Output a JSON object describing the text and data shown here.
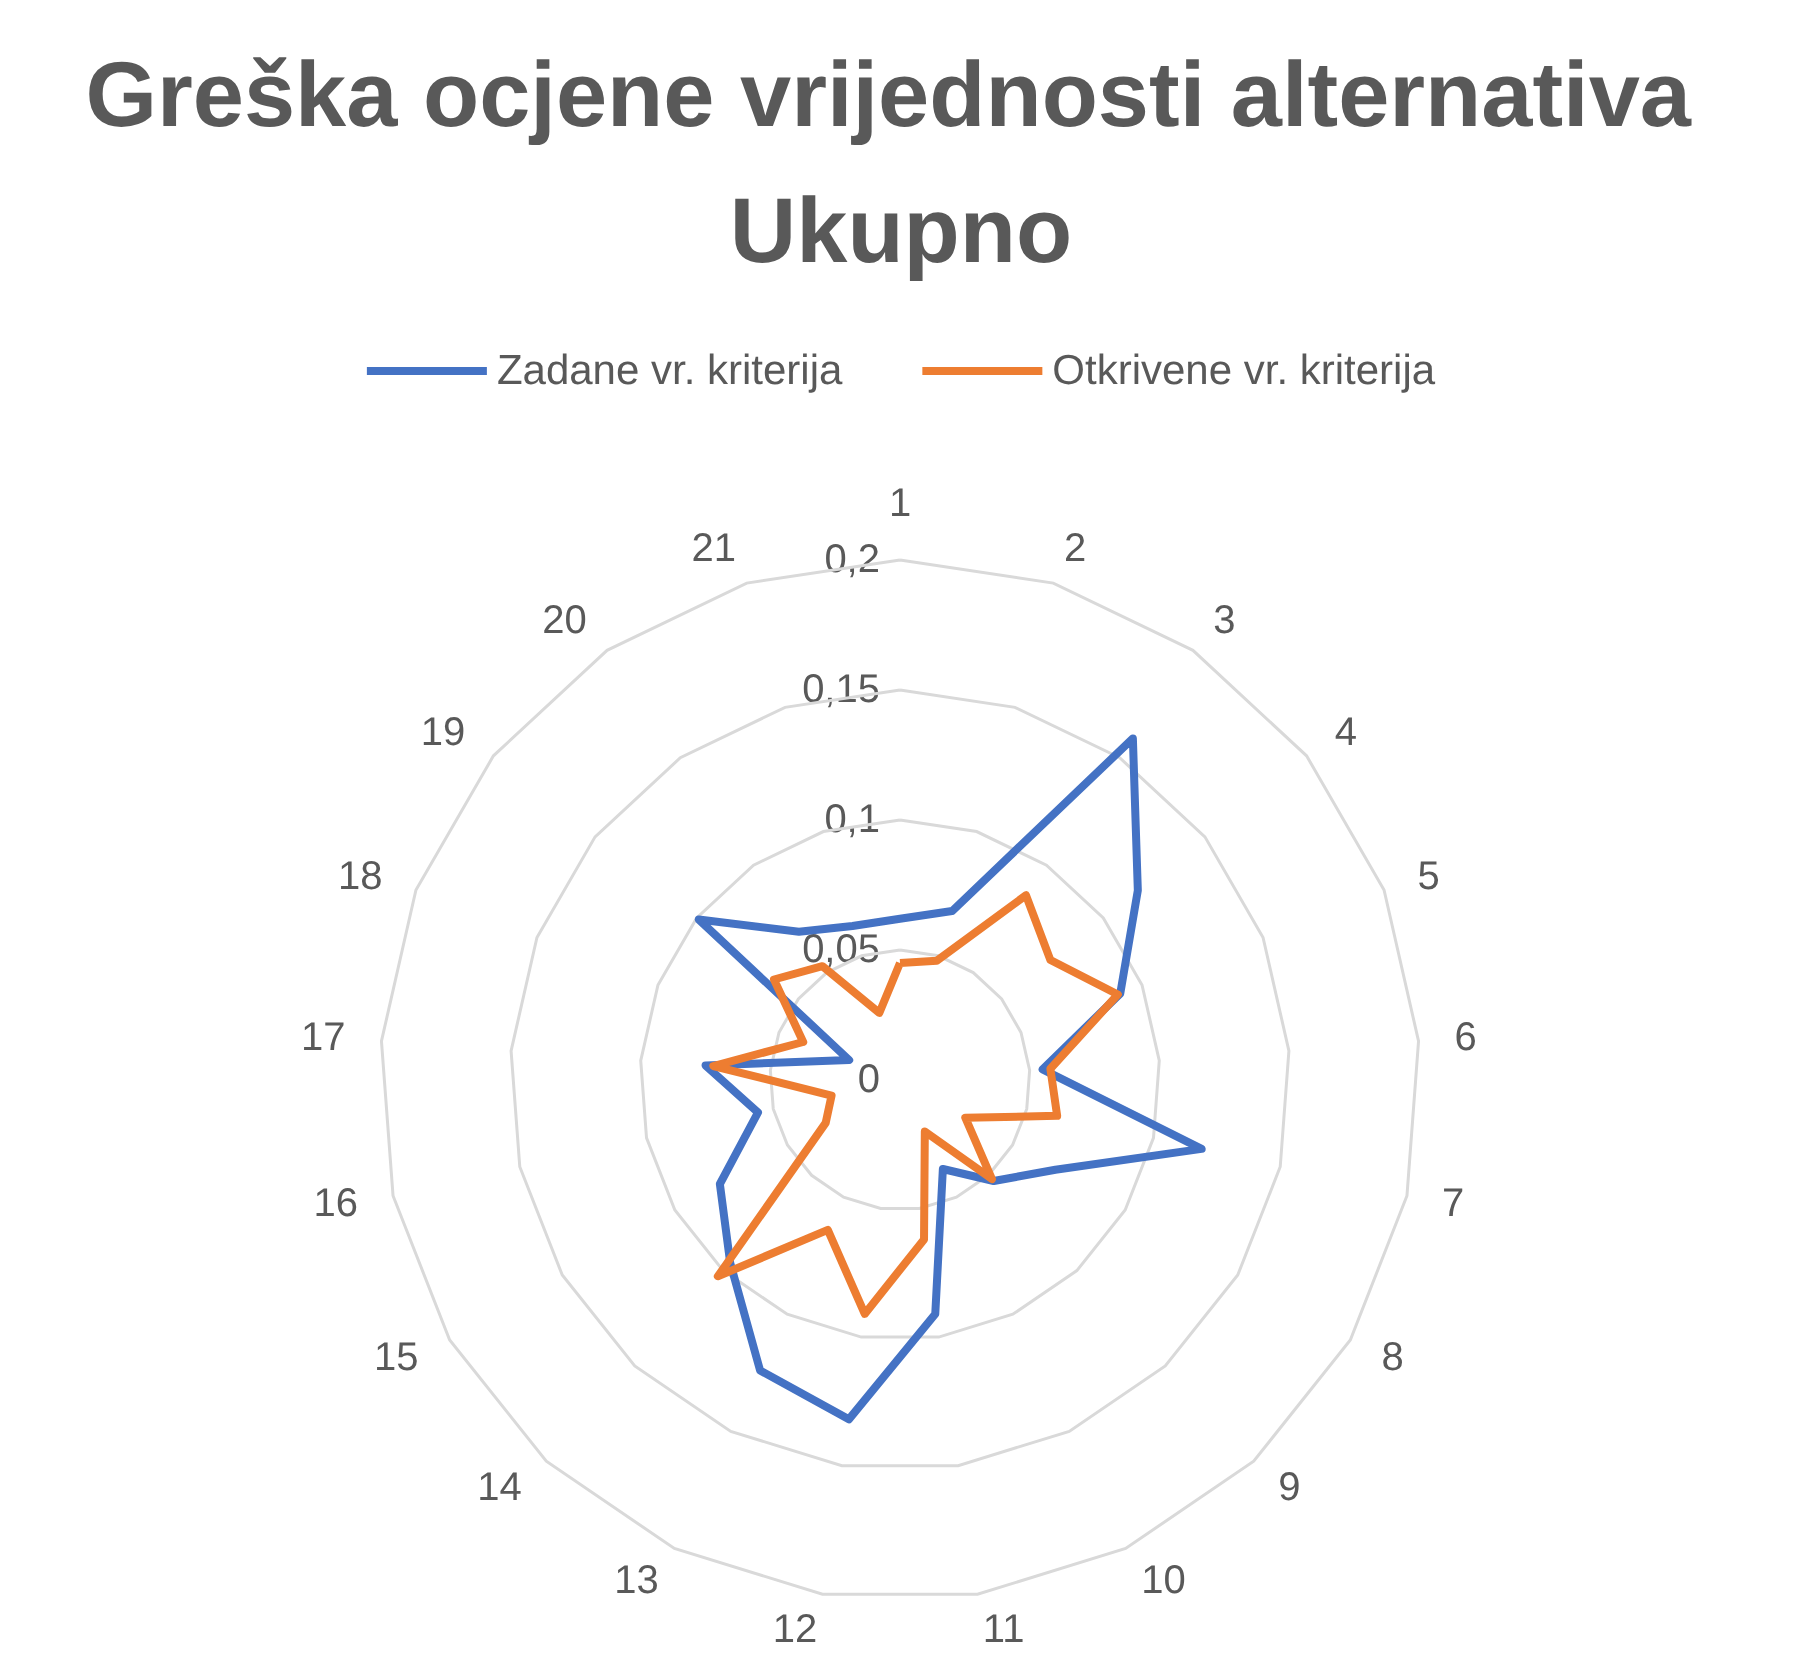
{
  "chart_data": {
    "type": "radar",
    "title": "Greška ocjene vrijednosti alternativa Ukupno",
    "categories": [
      "1",
      "2",
      "3",
      "4",
      "5",
      "6",
      "7",
      "8",
      "9",
      "10",
      "11",
      "12",
      "13",
      "14",
      "15",
      "16",
      "17",
      "18",
      "19",
      "20",
      "21"
    ],
    "series": [
      {
        "name": "Zadane vr. kriterija",
        "color": "#4472c4",
        "values": [
          0.062,
          0.068,
          0.159,
          0.117,
          0.091,
          0.055,
          0.119,
          0.069,
          0.053,
          0.038,
          0.091,
          0.132,
          0.124,
          0.096,
          0.08,
          0.056,
          0.075,
          0.021,
          0.099,
          0.069,
          0.062
        ]
      },
      {
        "name": "Otkrivene vr. kriterija",
        "color": "#ed7d31",
        "values": [
          0.045,
          0.048,
          0.086,
          0.074,
          0.09,
          0.058,
          0.062,
          0.029,
          0.052,
          0.022,
          0.062,
          0.091,
          0.064,
          0.103,
          0.033,
          0.027,
          0.072,
          0.04,
          0.062,
          0.053,
          0.027
        ]
      }
    ],
    "ylim": [
      0,
      0.2
    ],
    "yticks": [
      0,
      {
        "value": 0.05,
        "label": "0,05"
      },
      {
        "value": 0.1,
        "label": "0,1"
      },
      {
        "value": 0.15,
        "label": "0,15"
      },
      {
        "value": 0.2,
        "label": "0,2"
      }
    ],
    "grid": true,
    "legend": "top",
    "marker": "none",
    "line_style": "solid"
  }
}
